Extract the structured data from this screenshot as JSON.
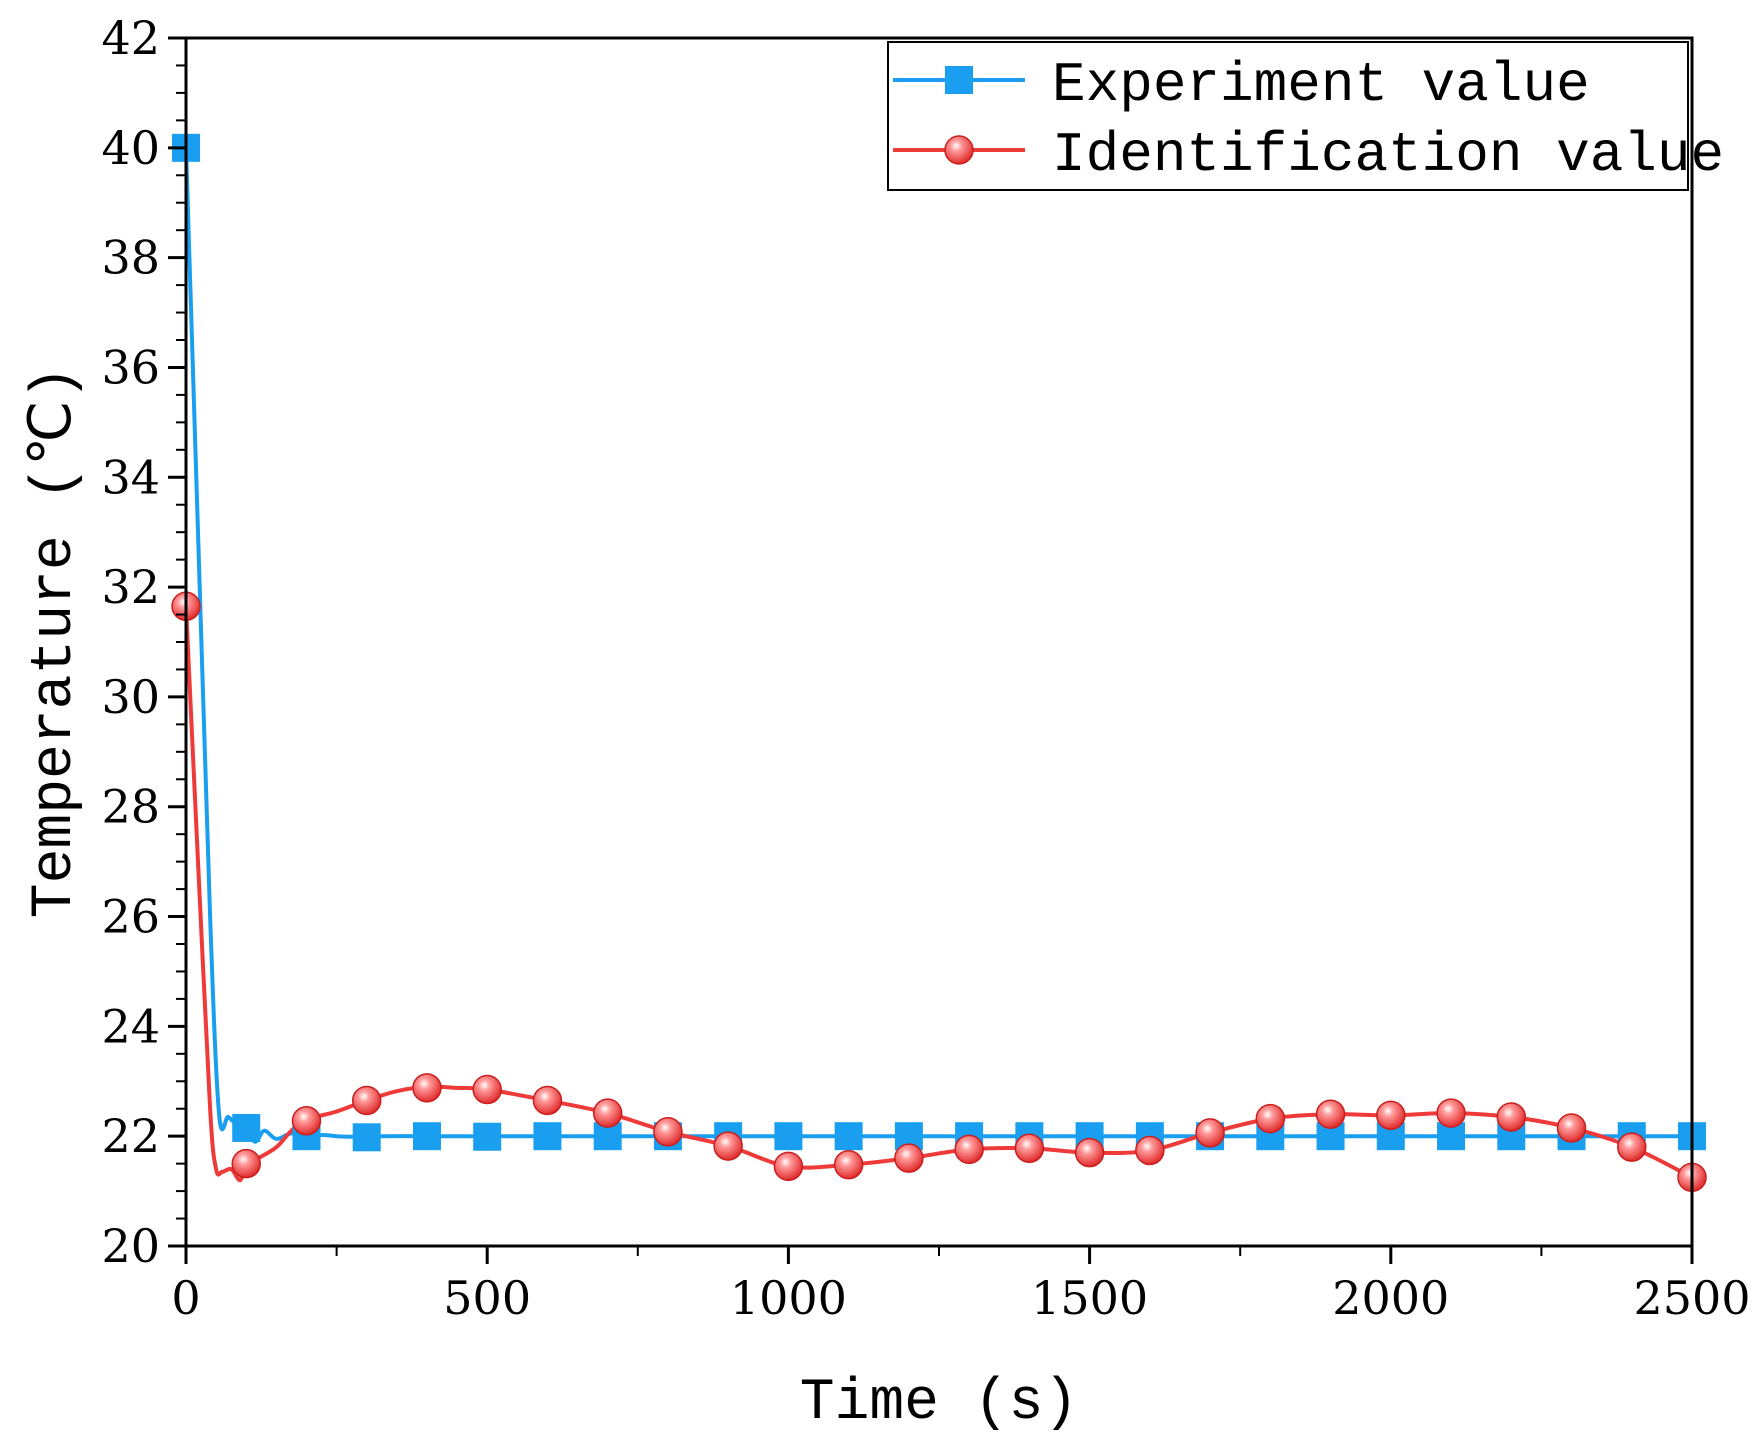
{
  "chart_data": {
    "type": "line",
    "title": "",
    "xlabel": "Time (s)",
    "ylabel": "Temperature (℃)",
    "xlim": [
      0,
      2500
    ],
    "ylim": [
      20,
      42
    ],
    "xticks": [
      0,
      500,
      1000,
      1500,
      2000,
      2500
    ],
    "yticks": [
      20,
      22,
      24,
      26,
      28,
      30,
      32,
      34,
      36,
      38,
      40,
      42
    ],
    "grid": false,
    "legend_position": "top-right",
    "series": [
      {
        "name": "Experiment value",
        "color": "#1a9ff0",
        "marker": "square",
        "x": [
          0,
          20,
          40,
          55,
          70,
          85,
          100,
          115,
          130,
          150,
          175,
          200,
          225,
          250,
          275,
          300,
          400,
          500,
          600,
          700,
          800,
          900,
          1000,
          1100,
          1200,
          1300,
          1400,
          1500,
          1600,
          1700,
          1800,
          1900,
          2000,
          2100,
          2200,
          2300,
          2400,
          2500
        ],
        "y": [
          40.0,
          33.0,
          26.0,
          22.4,
          22.35,
          22.2,
          22.1,
          21.9,
          22.1,
          21.95,
          22.05,
          21.97,
          22.02,
          22.0,
          21.99,
          22.0,
          22.0,
          22.0,
          22.0,
          22.0,
          22.0,
          22.0,
          22.0,
          22.0,
          22.0,
          22.0,
          22.0,
          22.0,
          22.0,
          22.0,
          22.0,
          22.0,
          22.0,
          22.0,
          22.0,
          22.0,
          22.0,
          22.0
        ],
        "marker_x": [
          0,
          100,
          200,
          300,
          400,
          500,
          600,
          700,
          800,
          900,
          1000,
          1100,
          1200,
          1300,
          1400,
          1500,
          1600,
          1700,
          1800,
          1900,
          2000,
          2100,
          2200,
          2300,
          2400,
          2500
        ],
        "marker_y": [
          40.0,
          22.15,
          22.0,
          21.98,
          22.0,
          21.99,
          22.0,
          22.0,
          22.0,
          22.0,
          22.0,
          22.0,
          22.0,
          22.0,
          22.0,
          22.0,
          22.0,
          22.0,
          22.0,
          22.0,
          22.0,
          22.0,
          22.0,
          22.0,
          22.0,
          22.0
        ]
      },
      {
        "name": "Identification value",
        "color": "#ef3a3a",
        "marker": "circle",
        "x": [
          0,
          20,
          40,
          50,
          60,
          75,
          90,
          100,
          120,
          150,
          175,
          200,
          250,
          300,
          350,
          400,
          450,
          500,
          600,
          700,
          800,
          900,
          1000,
          1100,
          1200,
          1300,
          1400,
          1500,
          1600,
          1700,
          1800,
          1900,
          2000,
          2100,
          2200,
          2300,
          2400,
          2500
        ],
        "y": [
          31.65,
          27.0,
          22.5,
          21.4,
          21.35,
          21.4,
          21.2,
          21.5,
          21.6,
          21.8,
          22.1,
          22.3,
          22.45,
          22.65,
          22.82,
          22.9,
          22.88,
          22.85,
          22.65,
          22.42,
          22.08,
          21.82,
          21.45,
          21.48,
          21.6,
          21.76,
          21.78,
          21.7,
          21.74,
          22.06,
          22.32,
          22.4,
          22.38,
          22.42,
          22.35,
          22.15,
          21.8,
          21.25
        ],
        "marker_x": [
          0,
          100,
          200,
          300,
          400,
          500,
          600,
          700,
          800,
          900,
          1000,
          1100,
          1200,
          1300,
          1400,
          1500,
          1600,
          1700,
          1800,
          1900,
          2000,
          2100,
          2200,
          2300,
          2400,
          2500
        ],
        "marker_y": [
          31.65,
          21.5,
          22.28,
          22.65,
          22.88,
          22.85,
          22.65,
          22.42,
          22.08,
          21.82,
          21.45,
          21.48,
          21.6,
          21.76,
          21.78,
          21.7,
          21.74,
          22.06,
          22.32,
          22.4,
          22.38,
          22.42,
          22.35,
          22.15,
          21.8,
          21.25
        ]
      }
    ]
  }
}
